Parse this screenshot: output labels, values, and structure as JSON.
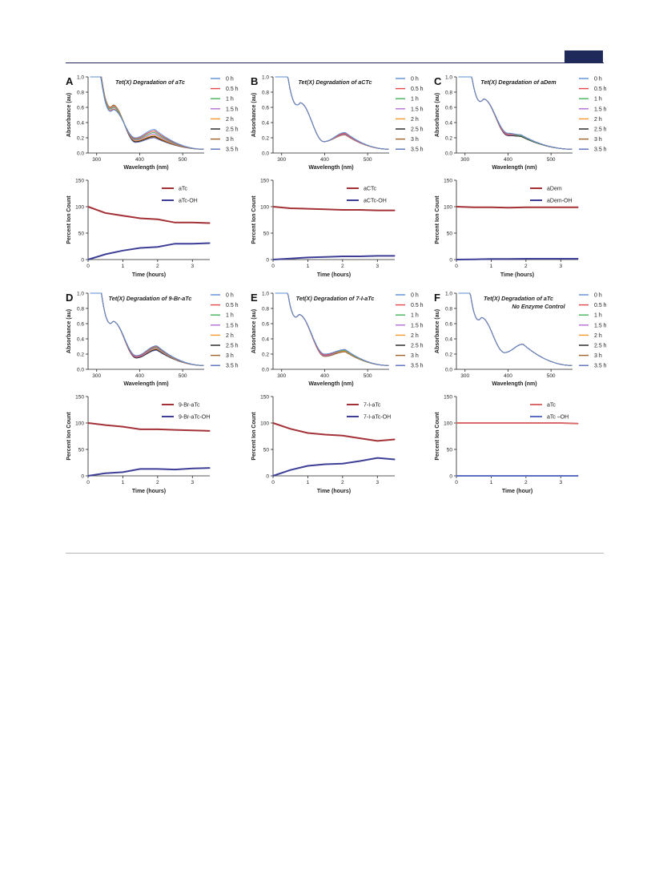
{
  "layout_note": "",
  "colors": {
    "rule": "#1f2a5a",
    "spectra": [
      "#5b8fd6",
      "#e8464a",
      "#43b55b",
      "#b46dd8",
      "#f39a2a",
      "#202020",
      "#a0622b",
      "#5a6fc2"
    ],
    "parent": "#a33137",
    "product": "#3d3f96",
    "no_enzyme_product": "#5a6fc2",
    "no_enzyme_parent": "#d86a6a"
  },
  "chart_data": [
    {
      "panel": "A",
      "spectrum": {
        "type": "line",
        "title": "Tet(X) Degradation of aTc",
        "subtitle": "",
        "xlabel": "Wavelength (nm)",
        "ylabel": "Absorbance (au)",
        "xlim": [
          280,
          550
        ],
        "ylim": [
          0,
          1.0
        ],
        "xticks": [
          300,
          400,
          500
        ],
        "yticks": [
          0,
          0.2,
          0.4,
          0.6,
          0.8,
          1.0
        ],
        "peak1_nm": 338,
        "trough_nm": 390,
        "peak2_nm": 435,
        "legend": [
          "0 h",
          "0.5 h",
          "1 h",
          "1.5 h",
          "2 h",
          "2.5 h",
          "3 h",
          "3.5 h"
        ],
        "p1": [
          0.57,
          0.58,
          0.6,
          0.61,
          0.62,
          0.62,
          0.63,
          0.63
        ],
        "tr": [
          0.2,
          0.19,
          0.18,
          0.17,
          0.16,
          0.15,
          0.15,
          0.14
        ],
        "p2": [
          0.31,
          0.29,
          0.27,
          0.25,
          0.23,
          0.22,
          0.21,
          0.2
        ]
      },
      "kinetics": {
        "type": "line",
        "xlabel": "Time (hours)",
        "ylabel": "Percent Ion Count",
        "xlim": [
          0,
          3.5
        ],
        "ylim": [
          0,
          150
        ],
        "xticks": [
          0,
          1,
          2,
          3
        ],
        "yticks": [
          0,
          50,
          100,
          150
        ],
        "series": [
          {
            "name": "aTc",
            "role": "parent",
            "x": [
              0,
              0.5,
              1,
              1.5,
              2,
              2.5,
              3,
              3.5
            ],
            "values": [
              100,
              88,
              83,
              78,
              76,
              70,
              70,
              69
            ]
          },
          {
            "name": "aTc-OH",
            "role": "product",
            "x": [
              0,
              0.5,
              1,
              1.5,
              2,
              2.5,
              3,
              3.5
            ],
            "values": [
              0,
              10,
              17,
              22,
              24,
              30,
              30,
              31
            ]
          }
        ]
      }
    },
    {
      "panel": "B",
      "spectrum": {
        "type": "line",
        "title": "Tet(X) Degradation of aCTc",
        "subtitle": "",
        "xlabel": "Wavelength (nm)",
        "ylabel": "Absorbance (au)",
        "xlim": [
          280,
          550
        ],
        "ylim": [
          0,
          1.0
        ],
        "xticks": [
          300,
          400,
          500
        ],
        "yticks": [
          0,
          0.2,
          0.4,
          0.6,
          0.8,
          1.0
        ],
        "peak1_nm": 343,
        "trough_nm": 398,
        "peak2_nm": 448,
        "legend": [
          "0 h",
          "0.5 h",
          "1 h",
          "1.5 h",
          "2 h",
          "2.5 h",
          "3 h",
          "3.5 h"
        ],
        "p1": [
          0.66,
          0.66,
          0.66,
          0.66,
          0.66,
          0.66,
          0.66,
          0.66
        ],
        "tr": [
          0.15,
          0.15,
          0.15,
          0.15,
          0.15,
          0.15,
          0.15,
          0.15
        ],
        "p2": [
          0.27,
          0.26,
          0.26,
          0.25,
          0.25,
          0.25,
          0.24,
          0.24
        ]
      },
      "kinetics": {
        "type": "line",
        "xlabel": "Time (hours)",
        "ylabel": "Percent Ion Count",
        "xlim": [
          0,
          3.5
        ],
        "ylim": [
          0,
          150
        ],
        "xticks": [
          0,
          1,
          2,
          3
        ],
        "yticks": [
          0,
          50,
          100,
          150
        ],
        "series": [
          {
            "name": "aCTc",
            "role": "parent",
            "x": [
              0,
              0.5,
              1,
              1.5,
              2,
              2.5,
              3,
              3.5
            ],
            "values": [
              100,
              97,
              96,
              95,
              94,
              94,
              93,
              93
            ]
          },
          {
            "name": "aCTc-OH",
            "role": "product",
            "x": [
              0,
              0.5,
              1,
              1.5,
              2,
              2.5,
              3,
              3.5
            ],
            "values": [
              0,
              2,
              4,
              5,
              6,
              6,
              7,
              7
            ]
          }
        ]
      }
    },
    {
      "panel": "C",
      "spectrum": {
        "type": "line",
        "title": "Tet(X) Degradation of aDem",
        "subtitle": "",
        "xlabel": "Wavelength (nm)",
        "ylabel": "Absorbance (au)",
        "xlim": [
          280,
          550
        ],
        "ylim": [
          0,
          1.0
        ],
        "xticks": [
          300,
          400,
          500
        ],
        "yticks": [
          0,
          0.2,
          0.4,
          0.6,
          0.8,
          1.0
        ],
        "peak1_nm": 343,
        "trough_nm": 400,
        "peak2_nm": 430,
        "legend": [
          "0 h",
          "0.5 h",
          "1 h",
          "1.5 h",
          "2 h",
          "2.5 h",
          "3 h",
          "3.5 h"
        ],
        "p1": [
          0.71,
          0.71,
          0.71,
          0.71,
          0.71,
          0.71,
          0.71,
          0.71
        ],
        "tr": [
          0.26,
          0.25,
          0.25,
          0.24,
          0.24,
          0.23,
          0.23,
          0.23
        ],
        "p2": [
          0.24,
          0.24,
          0.23,
          0.23,
          0.23,
          0.22,
          0.22,
          0.22
        ]
      },
      "kinetics": {
        "type": "line",
        "xlabel": "Time (hours)",
        "ylabel": "Percent Ion Count",
        "xlim": [
          0,
          3.5
        ],
        "ylim": [
          0,
          150
        ],
        "xticks": [
          0,
          1,
          2,
          3
        ],
        "yticks": [
          0,
          50,
          100,
          150
        ],
        "series": [
          {
            "name": "aDem",
            "role": "parent",
            "x": [
              0,
              0.5,
              1,
              1.5,
              2,
              2.5,
              3,
              3.5
            ],
            "values": [
              100,
              99,
              99,
              98,
              99,
              99,
              99,
              99
            ]
          },
          {
            "name": "aDem-OH",
            "role": "product",
            "x": [
              0,
              0.5,
              1,
              1.5,
              2,
              2.5,
              3,
              3.5
            ],
            "values": [
              0,
              0.5,
              1,
              1,
              1.5,
              1.5,
              1.5,
              1.5
            ]
          }
        ]
      }
    },
    {
      "panel": "D",
      "spectrum": {
        "type": "line",
        "title": "Tet(X) Degradation of 9-Br-aTc",
        "subtitle": "",
        "xlabel": "Wavelength (nm)",
        "ylabel": "Absorbance (au)",
        "xlim": [
          280,
          550
        ],
        "ylim": [
          0,
          1.0
        ],
        "xticks": [
          300,
          400,
          500
        ],
        "yticks": [
          0,
          0.2,
          0.4,
          0.6,
          0.8,
          1.0
        ],
        "peak1_nm": 338,
        "trough_nm": 392,
        "peak2_nm": 440,
        "legend": [
          "0 h",
          "0.5 h",
          "1 h",
          "1.5 h",
          "2 h",
          "2.5 h",
          "3 h",
          "3.5 h"
        ],
        "p1": [
          0.63,
          0.63,
          0.63,
          0.63,
          0.63,
          0.63,
          0.63,
          0.63
        ],
        "tr": [
          0.18,
          0.17,
          0.17,
          0.16,
          0.16,
          0.15,
          0.15,
          0.15
        ],
        "p2": [
          0.31,
          0.3,
          0.29,
          0.28,
          0.27,
          0.26,
          0.26,
          0.25
        ]
      },
      "kinetics": {
        "type": "line",
        "xlabel": "Time (hours)",
        "ylabel": "Percent Ion Count",
        "xlim": [
          0,
          3.5
        ],
        "ylim": [
          0,
          150
        ],
        "xticks": [
          0,
          1,
          2,
          3
        ],
        "yticks": [
          0,
          50,
          100,
          150
        ],
        "series": [
          {
            "name": "9-Br-aTc",
            "role": "parent",
            "x": [
              0,
              0.5,
              1,
              1.5,
              2,
              2.5,
              3,
              3.5
            ],
            "values": [
              100,
              96,
              93,
              88,
              88,
              87,
              86,
              85
            ]
          },
          {
            "name": "9-Br-aTc-OH",
            "role": "product",
            "x": [
              0,
              0.5,
              1,
              1.5,
              2,
              2.5,
              3,
              3.5
            ],
            "values": [
              0,
              5,
              7,
              13,
              13,
              12,
              14,
              15
            ]
          }
        ]
      }
    },
    {
      "panel": "E",
      "spectrum": {
        "type": "line",
        "title": "Tet(X) Degradation of 7-I-aTc",
        "subtitle": "",
        "xlabel": "Wavelength (nm)",
        "ylabel": "Absorbance (au)",
        "xlim": [
          280,
          550
        ],
        "ylim": [
          0,
          1.0
        ],
        "xticks": [
          300,
          400,
          500
        ],
        "yticks": [
          0,
          0.2,
          0.4,
          0.6,
          0.8,
          1.0
        ],
        "peak1_nm": 340,
        "trough_nm": 400,
        "peak2_nm": 448,
        "legend": [
          "0 h",
          "0.5 h",
          "1 h",
          "1.5 h",
          "2 h",
          "2.5 h",
          "3 h",
          "3.5 h"
        ],
        "p1": [
          0.72,
          0.72,
          0.72,
          0.72,
          0.72,
          0.72,
          0.72,
          0.72
        ],
        "tr": [
          0.2,
          0.19,
          0.19,
          0.18,
          0.18,
          0.18,
          0.17,
          0.17
        ],
        "p2": [
          0.26,
          0.26,
          0.25,
          0.25,
          0.24,
          0.24,
          0.23,
          0.23
        ]
      },
      "kinetics": {
        "type": "line",
        "xlabel": "Time (hours)",
        "ylabel": "Percent Ion Count",
        "xlim": [
          0,
          3.5
        ],
        "ylim": [
          0,
          150
        ],
        "xticks": [
          0,
          1,
          2,
          3
        ],
        "yticks": [
          0,
          50,
          100,
          150
        ],
        "series": [
          {
            "name": "7-I-aTc",
            "role": "parent",
            "x": [
              0,
              0.5,
              1,
              1.5,
              2,
              2.5,
              3,
              3.5
            ],
            "values": [
              100,
              89,
              81,
              78,
              76,
              71,
              66,
              69
            ]
          },
          {
            "name": "7-I-aTc-OH",
            "role": "product",
            "x": [
              0,
              0.5,
              1,
              1.5,
              2,
              2.5,
              3,
              3.5
            ],
            "values": [
              0,
              11,
              19,
              22,
              23,
              28,
              34,
              31
            ]
          }
        ]
      }
    },
    {
      "panel": "F",
      "spectrum": {
        "type": "line",
        "title": "Tet(X) Degradation of aTc",
        "subtitle": "No Enzyme Control",
        "xlabel": "Wavelength (nm)",
        "ylabel": "Absorbance (au)",
        "xlim": [
          280,
          550
        ],
        "ylim": [
          0,
          1.0
        ],
        "xticks": [
          300,
          400,
          500
        ],
        "yticks": [
          0,
          0.2,
          0.4,
          0.6,
          0.8,
          1.0
        ],
        "peak1_nm": 338,
        "trough_nm": 392,
        "peak2_nm": 435,
        "legend": [
          "0 h",
          "0.5 h",
          "1 h",
          "1.5 h",
          "2 h",
          "2.5 h",
          "3 h",
          "3.5 h"
        ],
        "p1": [
          0.68,
          0.68,
          0.68,
          0.68,
          0.68,
          0.68,
          0.68,
          0.68
        ],
        "tr": [
          0.22,
          0.22,
          0.22,
          0.22,
          0.22,
          0.22,
          0.22,
          0.22
        ],
        "p2": [
          0.33,
          0.33,
          0.33,
          0.33,
          0.33,
          0.33,
          0.33,
          0.33
        ]
      },
      "kinetics": {
        "type": "line",
        "xlabel": "Time (hour)",
        "ylabel": "Percent Ion Count",
        "xlim": [
          0,
          3.5
        ],
        "ylim": [
          0,
          150
        ],
        "xticks": [
          0,
          1,
          2,
          3
        ],
        "yticks": [
          0,
          50,
          100,
          150
        ],
        "series": [
          {
            "name": "aTc",
            "role": "no_enzyme_parent",
            "x": [
              0,
              0.5,
              1,
              1.5,
              2,
              2.5,
              3,
              3.5
            ],
            "values": [
              100,
              100,
              100,
              100,
              100,
              100,
              100,
              99
            ]
          },
          {
            "name": "aTc –OH",
            "role": "no_enzyme_product",
            "x": [
              0,
              0.5,
              1,
              1.5,
              2,
              2.5,
              3,
              3.5
            ],
            "values": [
              0,
              0,
              0,
              0,
              0,
              0,
              0,
              0
            ]
          }
        ]
      }
    }
  ]
}
